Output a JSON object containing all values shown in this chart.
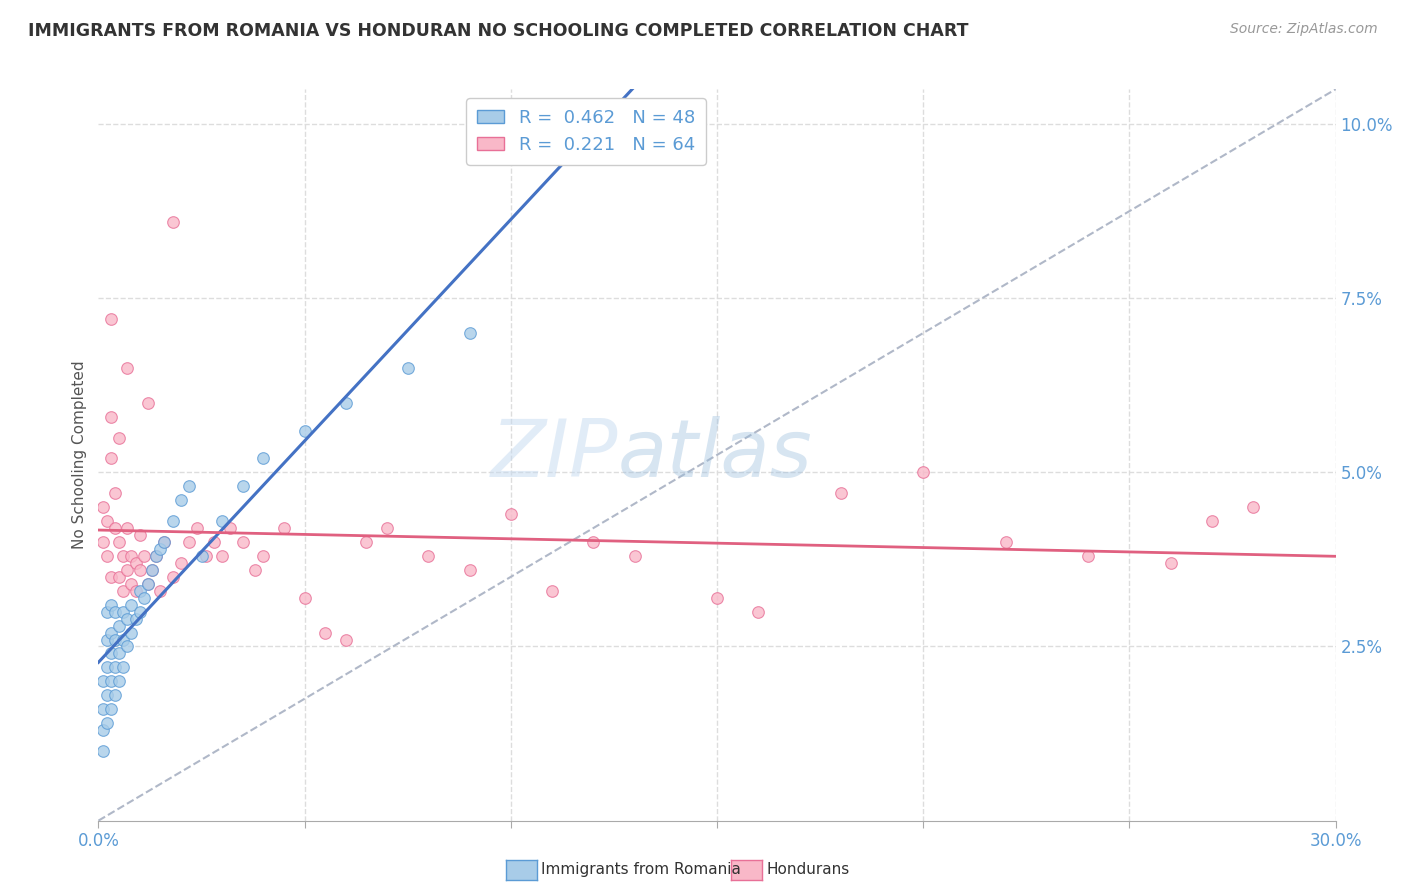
{
  "title": "IMMIGRANTS FROM ROMANIA VS HONDURAN NO SCHOOLING COMPLETED CORRELATION CHART",
  "source": "Source: ZipAtlas.com",
  "ylabel": "No Schooling Completed",
  "xlim": [
    0.0,
    0.3
  ],
  "ylim": [
    0.0,
    0.105
  ],
  "xtick_positions": [
    0.0,
    0.05,
    0.1,
    0.15,
    0.2,
    0.25,
    0.3
  ],
  "yticks_right": [
    0.025,
    0.05,
    0.075,
    0.1
  ],
  "yticklabels_right": [
    "2.5%",
    "5.0%",
    "7.5%",
    "10.0%"
  ],
  "blue_color": "#a8cce8",
  "pink_color": "#f9b8c8",
  "blue_edge": "#5b9bd5",
  "pink_edge": "#e87097",
  "blue_line_color": "#4472c4",
  "pink_line_color": "#e06080",
  "legend_R_blue": "0.462",
  "legend_N_blue": "48",
  "legend_R_pink": "0.221",
  "legend_N_pink": "64",
  "legend_label_blue": "Immigrants from Romania",
  "legend_label_pink": "Hondurans",
  "blue_scatter_x": [
    0.001,
    0.001,
    0.001,
    0.001,
    0.002,
    0.002,
    0.002,
    0.002,
    0.002,
    0.003,
    0.003,
    0.003,
    0.003,
    0.003,
    0.004,
    0.004,
    0.004,
    0.004,
    0.005,
    0.005,
    0.005,
    0.006,
    0.006,
    0.006,
    0.007,
    0.007,
    0.008,
    0.008,
    0.009,
    0.01,
    0.01,
    0.011,
    0.012,
    0.013,
    0.014,
    0.015,
    0.016,
    0.018,
    0.02,
    0.022,
    0.025,
    0.03,
    0.035,
    0.04,
    0.05,
    0.06,
    0.075,
    0.09
  ],
  "blue_scatter_y": [
    0.01,
    0.013,
    0.016,
    0.02,
    0.014,
    0.018,
    0.022,
    0.026,
    0.03,
    0.016,
    0.02,
    0.024,
    0.027,
    0.031,
    0.018,
    0.022,
    0.026,
    0.03,
    0.02,
    0.024,
    0.028,
    0.022,
    0.026,
    0.03,
    0.025,
    0.029,
    0.027,
    0.031,
    0.029,
    0.03,
    0.033,
    0.032,
    0.034,
    0.036,
    0.038,
    0.039,
    0.04,
    0.043,
    0.046,
    0.048,
    0.038,
    0.043,
    0.048,
    0.052,
    0.056,
    0.06,
    0.065,
    0.07
  ],
  "pink_scatter_x": [
    0.001,
    0.001,
    0.002,
    0.002,
    0.003,
    0.003,
    0.003,
    0.004,
    0.004,
    0.005,
    0.005,
    0.005,
    0.006,
    0.006,
    0.007,
    0.007,
    0.008,
    0.008,
    0.009,
    0.009,
    0.01,
    0.01,
    0.011,
    0.012,
    0.013,
    0.014,
    0.015,
    0.016,
    0.018,
    0.02,
    0.022,
    0.024,
    0.026,
    0.028,
    0.03,
    0.032,
    0.035,
    0.038,
    0.04,
    0.045,
    0.05,
    0.055,
    0.06,
    0.065,
    0.07,
    0.08,
    0.09,
    0.1,
    0.11,
    0.12,
    0.13,
    0.15,
    0.16,
    0.18,
    0.2,
    0.22,
    0.24,
    0.26,
    0.27,
    0.28,
    0.003,
    0.007,
    0.012,
    0.018
  ],
  "pink_scatter_y": [
    0.04,
    0.045,
    0.038,
    0.043,
    0.058,
    0.052,
    0.035,
    0.042,
    0.047,
    0.035,
    0.04,
    0.055,
    0.033,
    0.038,
    0.036,
    0.042,
    0.034,
    0.038,
    0.033,
    0.037,
    0.036,
    0.041,
    0.038,
    0.034,
    0.036,
    0.038,
    0.033,
    0.04,
    0.035,
    0.037,
    0.04,
    0.042,
    0.038,
    0.04,
    0.038,
    0.042,
    0.04,
    0.036,
    0.038,
    0.042,
    0.032,
    0.027,
    0.026,
    0.04,
    0.042,
    0.038,
    0.036,
    0.044,
    0.033,
    0.04,
    0.038,
    0.032,
    0.03,
    0.047,
    0.05,
    0.04,
    0.038,
    0.037,
    0.043,
    0.045,
    0.072,
    0.065,
    0.06,
    0.086
  ],
  "watermark_zip": "ZIP",
  "watermark_atlas": "atlas",
  "background_color": "#ffffff",
  "grid_color": "#dddddd",
  "title_color": "#333333",
  "axis_color": "#5b9bd5"
}
